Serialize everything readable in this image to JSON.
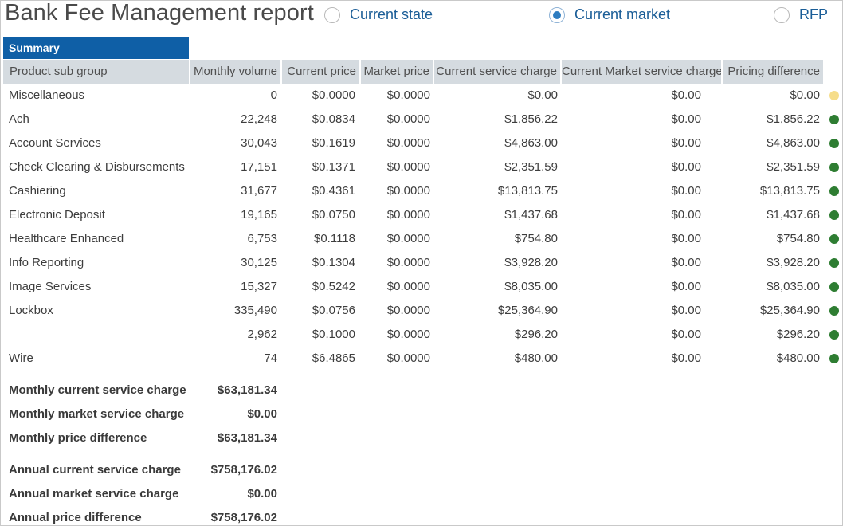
{
  "title": "Bank Fee Management report",
  "view_options": [
    {
      "label": "Current state",
      "selected": false
    },
    {
      "label": "Current market",
      "selected": true
    },
    {
      "label": "RFP",
      "selected": false
    }
  ],
  "summary_tab": "Summary",
  "columns": [
    "Product sub group",
    "Monthly volume",
    "Current price",
    "Market price",
    "Current service charge",
    "Current Market service charge",
    "Pricing difference"
  ],
  "colors": {
    "status_ok": "#2e7d32",
    "status_neutral": "#f6dd8a",
    "accent": "#0f5fa6"
  },
  "rows": [
    {
      "group": "Miscellaneous",
      "volume": "0",
      "current_price": "$0.0000",
      "market_price": "$0.0000",
      "current_charge": "$0.00",
      "market_charge": "$0.00",
      "difference": "$0.00",
      "status": "neutral"
    },
    {
      "group": "Ach",
      "volume": "22,248",
      "current_price": "$0.0834",
      "market_price": "$0.0000",
      "current_charge": "$1,856.22",
      "market_charge": "$0.00",
      "difference": "$1,856.22",
      "status": "ok"
    },
    {
      "group": "Account Services",
      "volume": "30,043",
      "current_price": "$0.1619",
      "market_price": "$0.0000",
      "current_charge": "$4,863.00",
      "market_charge": "$0.00",
      "difference": "$4,863.00",
      "status": "ok"
    },
    {
      "group": "Check Clearing & Disbursements",
      "volume": "17,151",
      "current_price": "$0.1371",
      "market_price": "$0.0000",
      "current_charge": "$2,351.59",
      "market_charge": "$0.00",
      "difference": "$2,351.59",
      "status": "ok"
    },
    {
      "group": "Cashiering",
      "volume": "31,677",
      "current_price": "$0.4361",
      "market_price": "$0.0000",
      "current_charge": "$13,813.75",
      "market_charge": "$0.00",
      "difference": "$13,813.75",
      "status": "ok"
    },
    {
      "group": "Electronic Deposit",
      "volume": "19,165",
      "current_price": "$0.0750",
      "market_price": "$0.0000",
      "current_charge": "$1,437.68",
      "market_charge": "$0.00",
      "difference": "$1,437.68",
      "status": "ok"
    },
    {
      "group": "Healthcare Enhanced",
      "volume": "6,753",
      "current_price": "$0.1118",
      "market_price": "$0.0000",
      "current_charge": "$754.80",
      "market_charge": "$0.00",
      "difference": "$754.80",
      "status": "ok"
    },
    {
      "group": "Info Reporting",
      "volume": "30,125",
      "current_price": "$0.1304",
      "market_price": "$0.0000",
      "current_charge": "$3,928.20",
      "market_charge": "$0.00",
      "difference": "$3,928.20",
      "status": "ok"
    },
    {
      "group": "Image Services",
      "volume": "15,327",
      "current_price": "$0.5242",
      "market_price": "$0.0000",
      "current_charge": "$8,035.00",
      "market_charge": "$0.00",
      "difference": "$8,035.00",
      "status": "ok"
    },
    {
      "group": "Lockbox",
      "volume": "335,490",
      "current_price": "$0.0756",
      "market_price": "$0.0000",
      "current_charge": "$25,364.90",
      "market_charge": "$0.00",
      "difference": "$25,364.90",
      "status": "ok"
    },
    {
      "group": "",
      "volume": "2,962",
      "current_price": "$0.1000",
      "market_price": "$0.0000",
      "current_charge": "$296.20",
      "market_charge": "$0.00",
      "difference": "$296.20",
      "status": "ok"
    },
    {
      "group": "Wire",
      "volume": "74",
      "current_price": "$6.4865",
      "market_price": "$0.0000",
      "current_charge": "$480.00",
      "market_charge": "$0.00",
      "difference": "$480.00",
      "status": "ok"
    }
  ],
  "totals": [
    {
      "label": "Monthly current service charge",
      "value": "$63,181.34"
    },
    {
      "label": "Monthly market service charge",
      "value": "$0.00"
    },
    {
      "label": "Monthly price difference",
      "value": "$63,181.34"
    },
    {
      "label": "Annual current service charge",
      "value": "$758,176.02"
    },
    {
      "label": "Annual market service charge",
      "value": "$0.00"
    },
    {
      "label": "Annual price difference",
      "value": "$758,176.02"
    }
  ]
}
